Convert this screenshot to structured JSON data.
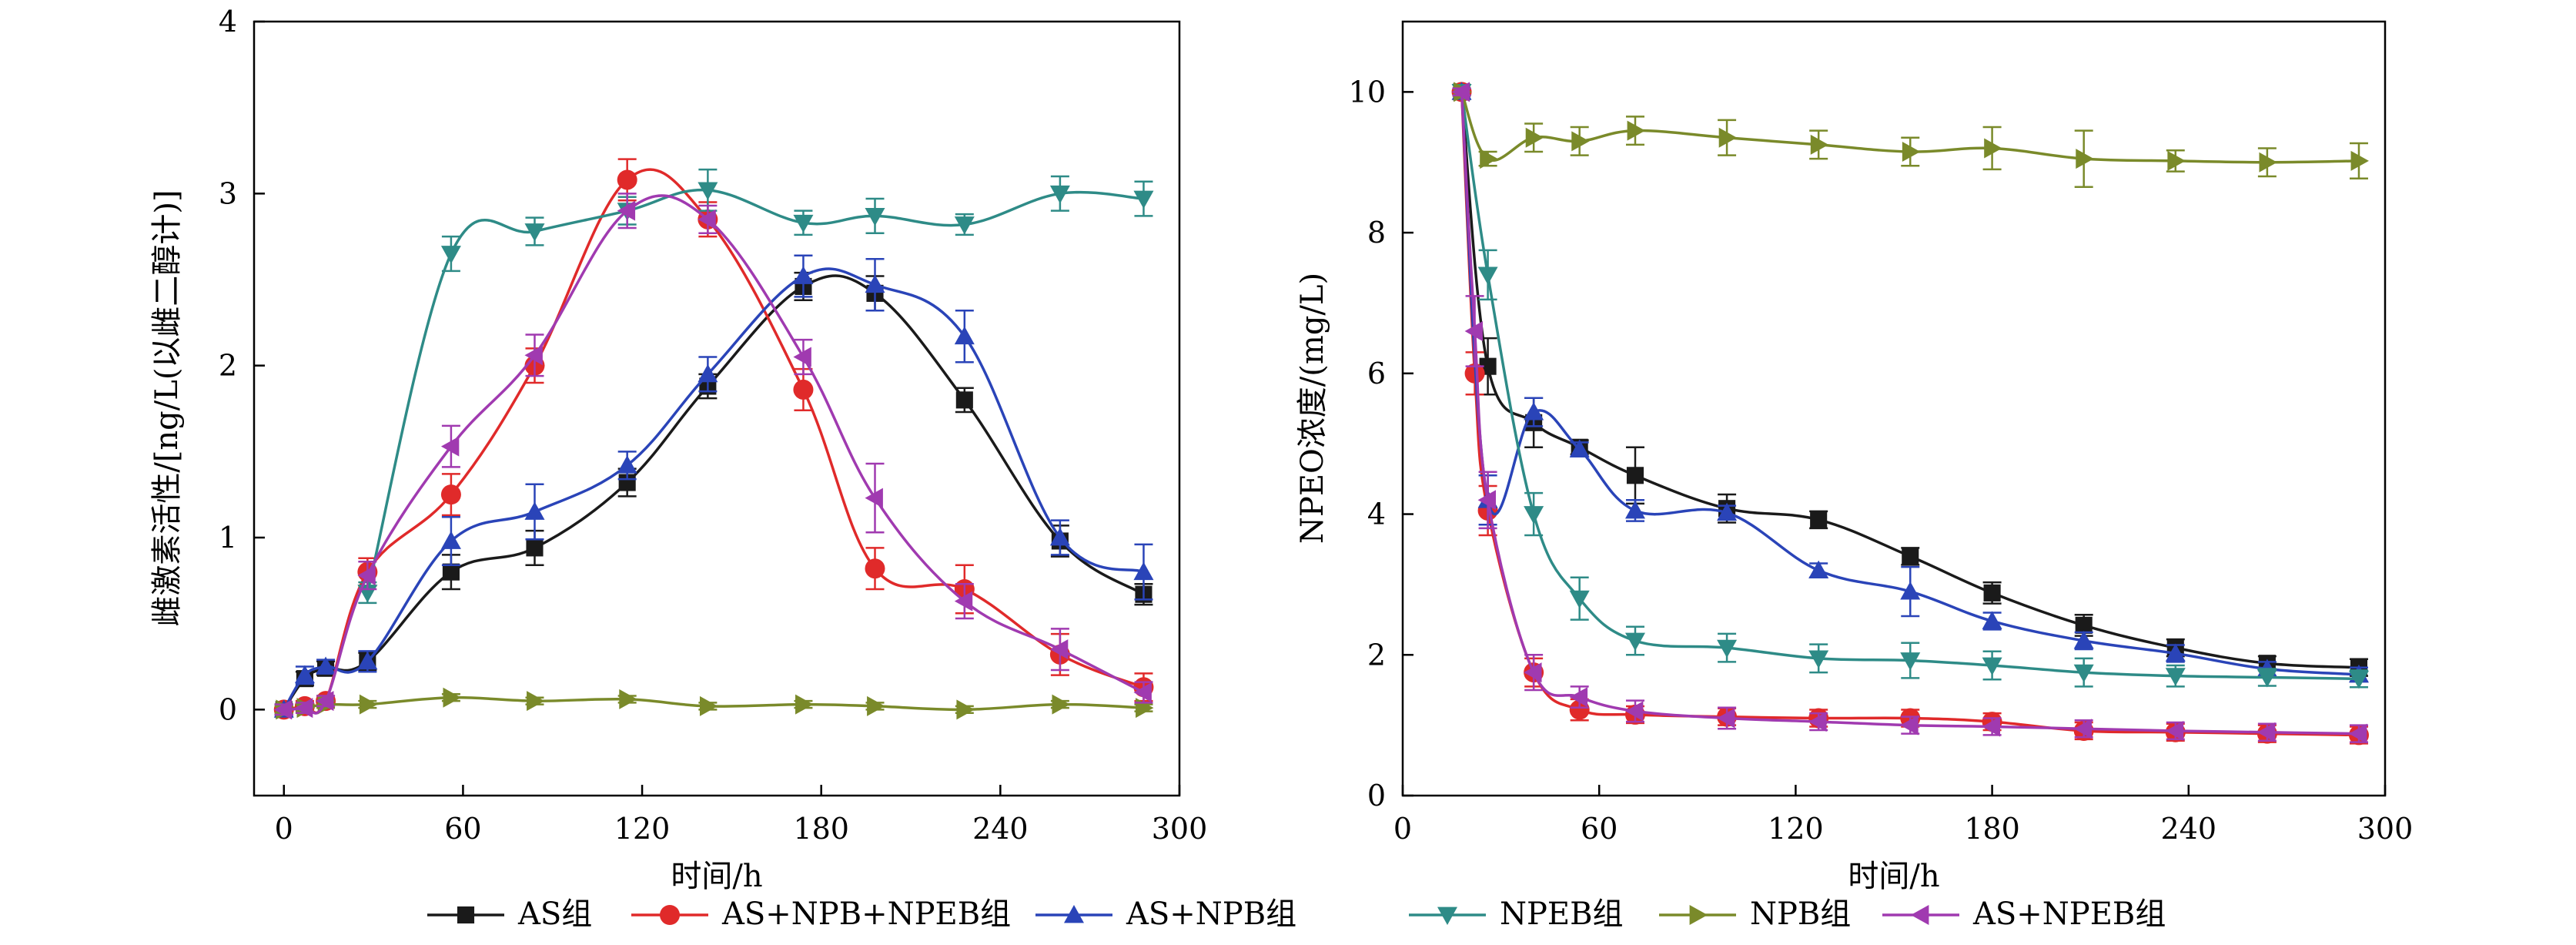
{
  "chart_data": [
    {
      "type": "line",
      "xlabel": "时间/h",
      "ylabel": "雌激素活性/[ng/L(以雌二醇计)]",
      "xlim": [
        -10,
        300
      ],
      "ylim": [
        -0.5,
        4
      ],
      "xticks": [
        0,
        60,
        120,
        180,
        240,
        300
      ],
      "yticks": [
        0,
        1,
        2,
        3,
        4
      ],
      "grid": false,
      "series": [
        {
          "name": "AS组",
          "color": "#1a1a1a",
          "marker": "square",
          "x": [
            0,
            7,
            14,
            28,
            56,
            84,
            115,
            142,
            174,
            198,
            228,
            260,
            288
          ],
          "y": [
            0,
            0.18,
            0.24,
            0.28,
            0.8,
            0.94,
            1.32,
            1.88,
            2.46,
            2.42,
            1.8,
            0.98,
            0.67
          ],
          "err": [
            0.03,
            0.04,
            0.04,
            0.05,
            0.1,
            0.1,
            0.08,
            0.07,
            0.08,
            0.1,
            0.07,
            0.09,
            0.06
          ]
        },
        {
          "name": "AS+NPB+NPEB组",
          "color": "#e02a2a",
          "marker": "circle",
          "x": [
            0,
            7,
            14,
            28,
            56,
            84,
            115,
            142,
            174,
            198,
            228,
            260,
            288
          ],
          "y": [
            0,
            0.02,
            0.05,
            0.8,
            1.25,
            2.0,
            3.08,
            2.85,
            1.86,
            0.82,
            0.7,
            0.32,
            0.13
          ],
          "err": [
            0.03,
            0.03,
            0.03,
            0.08,
            0.12,
            0.1,
            0.12,
            0.1,
            0.12,
            0.12,
            0.14,
            0.12,
            0.08
          ]
        },
        {
          "name": "AS+NPB组",
          "color": "#2a44b8",
          "marker": "triangle-up",
          "x": [
            0,
            7,
            14,
            28,
            56,
            84,
            115,
            142,
            174,
            198,
            228,
            260,
            288
          ],
          "y": [
            0,
            0.2,
            0.25,
            0.28,
            0.98,
            1.15,
            1.42,
            1.95,
            2.52,
            2.47,
            2.17,
            1.0,
            0.8
          ],
          "err": [
            0.03,
            0.05,
            0.04,
            0.06,
            0.14,
            0.16,
            0.08,
            0.1,
            0.12,
            0.15,
            0.15,
            0.1,
            0.16
          ]
        },
        {
          "name": "NPEB组",
          "color": "#2e8b87",
          "marker": "triangle-down",
          "x": [
            28,
            56,
            84,
            115,
            142,
            174,
            198,
            228,
            260,
            288
          ],
          "y": [
            0.68,
            2.65,
            2.78,
            2.9,
            3.02,
            2.83,
            2.87,
            2.82,
            3.0,
            2.97
          ],
          "err": [
            0.06,
            0.1,
            0.08,
            0.08,
            0.12,
            0.07,
            0.1,
            0.06,
            0.1,
            0.1
          ]
        },
        {
          "name": "NPB组",
          "color": "#7a8a2a",
          "marker": "triangle-right",
          "x": [
            0,
            7,
            14,
            28,
            56,
            84,
            115,
            142,
            174,
            198,
            228,
            260,
            288
          ],
          "y": [
            0,
            0.01,
            0.03,
            0.03,
            0.07,
            0.05,
            0.06,
            0.02,
            0.03,
            0.02,
            0.0,
            0.03,
            0.01
          ],
          "err": [
            0.02,
            0.02,
            0.02,
            0.02,
            0.02,
            0.02,
            0.02,
            0.02,
            0.02,
            0.02,
            0.02,
            0.02,
            0.02
          ]
        },
        {
          "name": "AS+NPEB组",
          "color": "#a03ab0",
          "marker": "triangle-left",
          "x": [
            0,
            7,
            14,
            28,
            56,
            84,
            115,
            142,
            174,
            198,
            228,
            260,
            288
          ],
          "y": [
            0,
            0.01,
            0.05,
            0.78,
            1.53,
            2.06,
            2.9,
            2.85,
            2.05,
            1.23,
            0.63,
            0.35,
            0.1
          ],
          "err": [
            0.03,
            0.03,
            0.03,
            0.08,
            0.12,
            0.12,
            0.1,
            0.08,
            0.1,
            0.2,
            0.1,
            0.12,
            0.06
          ]
        }
      ]
    },
    {
      "type": "line",
      "xlabel": "时间/h",
      "ylabel": "NPEO浓度/(mg/L)",
      "xlim": [
        0,
        300
      ],
      "ylim": [
        0,
        11
      ],
      "xticks": [
        0,
        60,
        120,
        180,
        240,
        300
      ],
      "yticks": [
        0,
        2,
        4,
        6,
        8,
        10
      ],
      "grid": false,
      "series": [
        {
          "name": "AS组",
          "color": "#1a1a1a",
          "marker": "square",
          "x": [
            18,
            26,
            40,
            54,
            71,
            99,
            127,
            155,
            180,
            208,
            236,
            264,
            292
          ],
          "y": [
            10.0,
            6.1,
            5.3,
            4.95,
            4.55,
            4.08,
            3.92,
            3.4,
            2.88,
            2.42,
            2.1,
            1.88,
            1.82
          ],
          "err": [
            0.05,
            0.4,
            0.35,
            0.1,
            0.4,
            0.2,
            0.12,
            0.12,
            0.15,
            0.15,
            0.12,
            0.1,
            0.12
          ]
        },
        {
          "name": "AS+NPB+NPEB组",
          "color": "#e02a2a",
          "marker": "circle",
          "x": [
            18,
            22,
            26,
            40,
            54,
            71,
            99,
            127,
            155,
            180,
            208,
            236,
            264,
            292
          ],
          "y": [
            10.0,
            6.0,
            4.05,
            1.75,
            1.22,
            1.15,
            1.12,
            1.1,
            1.1,
            1.05,
            0.92,
            0.9,
            0.88,
            0.86
          ],
          "err": [
            0.05,
            0.3,
            0.35,
            0.2,
            0.15,
            0.12,
            0.12,
            0.12,
            0.12,
            0.12,
            0.12,
            0.12,
            0.12,
            0.12
          ]
        },
        {
          "name": "AS+NPB组",
          "color": "#2a44b8",
          "marker": "triangle-up",
          "x": [
            18,
            26,
            40,
            54,
            71,
            99,
            127,
            155,
            180,
            208,
            236,
            264,
            292
          ],
          "y": [
            10.0,
            4.2,
            5.45,
            4.92,
            4.05,
            4.02,
            3.2,
            2.9,
            2.48,
            2.2,
            2.02,
            1.8,
            1.72
          ],
          "err": [
            0.05,
            0.35,
            0.2,
            0.1,
            0.15,
            0.1,
            0.1,
            0.35,
            0.12,
            0.12,
            0.12,
            0.1,
            0.1
          ]
        },
        {
          "name": "NPEB组",
          "color": "#2e8b87",
          "marker": "triangle-down",
          "x": [
            18,
            26,
            40,
            54,
            71,
            99,
            127,
            155,
            180,
            208,
            236,
            264,
            292
          ],
          "y": [
            10.0,
            7.4,
            4.0,
            2.8,
            2.2,
            2.1,
            1.95,
            1.92,
            1.85,
            1.75,
            1.7,
            1.68,
            1.66
          ],
          "err": [
            0.05,
            0.35,
            0.3,
            0.3,
            0.2,
            0.2,
            0.2,
            0.25,
            0.2,
            0.2,
            0.15,
            0.12,
            0.12
          ]
        },
        {
          "name": "NPB组",
          "color": "#7a8a2a",
          "marker": "triangle-right",
          "x": [
            18,
            26,
            40,
            54,
            71,
            99,
            127,
            155,
            180,
            208,
            236,
            264,
            292
          ],
          "y": [
            10.0,
            9.05,
            9.35,
            9.3,
            9.45,
            9.35,
            9.25,
            9.15,
            9.2,
            9.05,
            9.02,
            9.0,
            9.02
          ],
          "err": [
            0.05,
            0.1,
            0.2,
            0.2,
            0.2,
            0.25,
            0.2,
            0.2,
            0.3,
            0.4,
            0.15,
            0.2,
            0.25
          ]
        },
        {
          "name": "AS+NPEB组",
          "color": "#a03ab0",
          "marker": "triangle-left",
          "x": [
            18,
            22,
            26,
            40,
            54,
            71,
            99,
            127,
            155,
            180,
            208,
            236,
            264,
            292
          ],
          "y": [
            10.0,
            6.6,
            4.2,
            1.75,
            1.4,
            1.2,
            1.1,
            1.05,
            1.0,
            0.98,
            0.95,
            0.92,
            0.9,
            0.88
          ],
          "err": [
            0.05,
            0.5,
            0.4,
            0.25,
            0.15,
            0.15,
            0.15,
            0.12,
            0.12,
            0.12,
            0.12,
            0.12,
            0.12,
            0.12
          ]
        }
      ]
    }
  ],
  "legend": {
    "placement": "bottom",
    "items": [
      {
        "label": "AS组",
        "color": "#1a1a1a",
        "marker": "square"
      },
      {
        "label": "AS+NPB+NPEB组",
        "color": "#e02a2a",
        "marker": "circle"
      },
      {
        "label": "AS+NPB组",
        "color": "#2a44b8",
        "marker": "triangle-up"
      },
      {
        "label": "NPEB组",
        "color": "#2e8b87",
        "marker": "triangle-down"
      },
      {
        "label": "NPB组",
        "color": "#7a8a2a",
        "marker": "triangle-right"
      },
      {
        "label": "AS+NPEB组",
        "color": "#a03ab0",
        "marker": "triangle-left"
      }
    ]
  }
}
